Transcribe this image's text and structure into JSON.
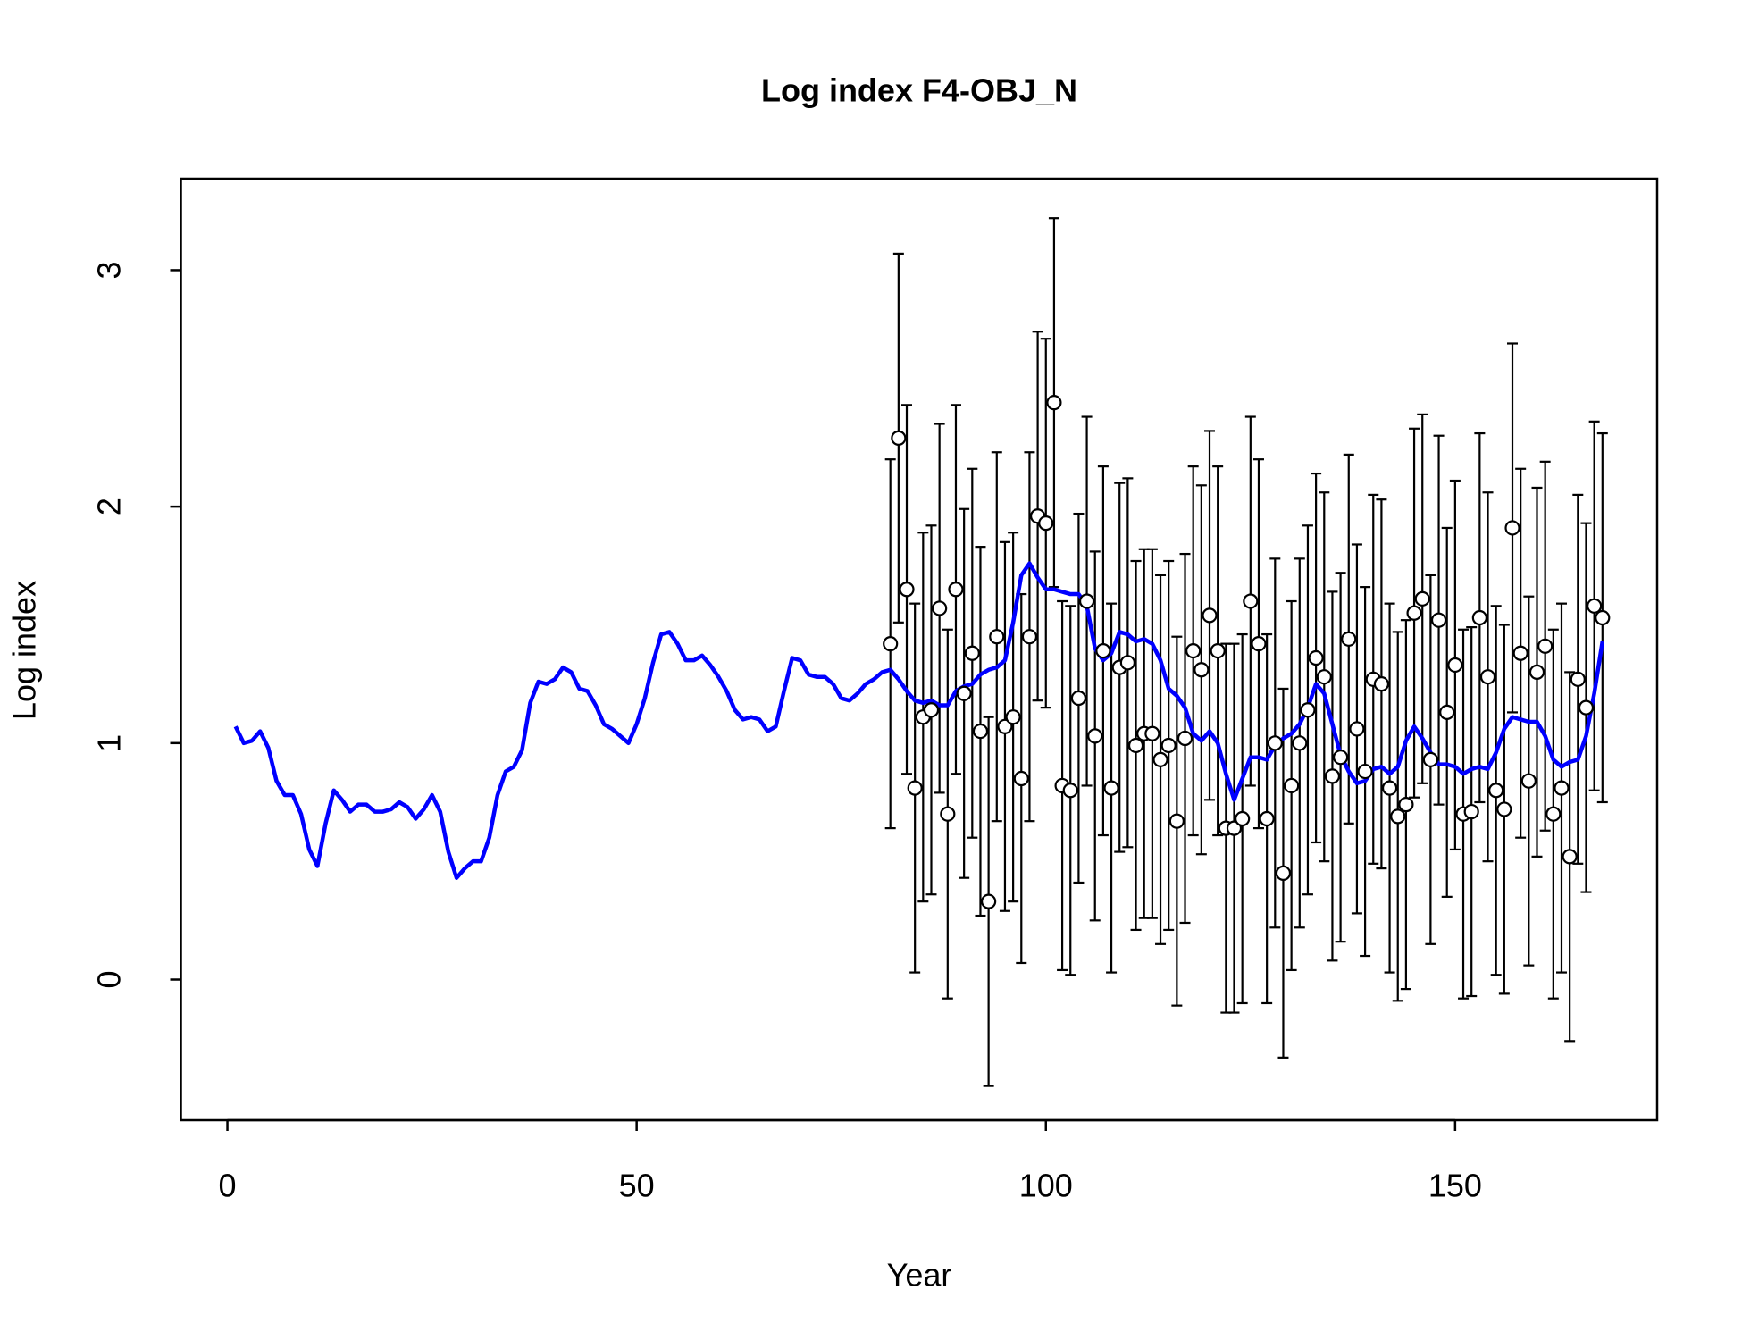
{
  "chart_data": {
    "type": "line",
    "title": "Log index F4-OBJ_N",
    "xlabel": "Year",
    "ylabel": "Log index",
    "xlim": [
      -5.68,
      174.68
    ],
    "ylim": [
      -0.595,
      3.387
    ],
    "xticks": [
      0,
      50,
      100,
      150
    ],
    "yticks": [
      0,
      1,
      2,
      3
    ],
    "line": {
      "color": "#0000ff",
      "x": [
        1,
        2,
        3,
        4,
        5,
        6,
        7,
        8,
        9,
        10,
        11,
        12,
        13,
        14,
        15,
        16,
        17,
        18,
        19,
        20,
        21,
        22,
        23,
        24,
        25,
        26,
        27,
        28,
        29,
        30,
        31,
        32,
        33,
        34,
        35,
        36,
        37,
        38,
        39,
        40,
        41,
        42,
        43,
        44,
        45,
        46,
        47,
        48,
        49,
        50,
        51,
        52,
        53,
        54,
        55,
        56,
        57,
        58,
        59,
        60,
        61,
        62,
        63,
        64,
        65,
        66,
        67,
        68,
        69,
        70,
        71,
        72,
        73,
        74,
        75,
        76,
        77,
        78,
        79,
        80,
        81,
        82,
        83,
        84,
        85,
        86,
        87,
        88,
        89,
        90,
        91,
        92,
        93,
        94,
        95,
        96,
        97,
        98,
        99,
        100,
        101,
        102,
        103,
        104,
        105,
        106,
        107,
        108,
        109,
        110,
        111,
        112,
        113,
        114,
        115,
        116,
        117,
        118,
        119,
        120,
        121,
        122,
        123,
        124,
        125,
        126,
        127,
        128,
        129,
        130,
        131,
        132,
        133,
        134,
        135,
        136,
        137,
        138,
        139,
        140,
        141,
        142,
        143,
        144,
        145,
        146,
        147,
        148,
        149,
        150,
        151,
        152,
        153,
        154,
        155,
        156,
        157,
        158,
        159,
        160,
        161,
        162,
        163,
        164,
        165,
        166,
        167,
        168
      ],
      "values": [
        1.07,
        1.0,
        1.01,
        1.05,
        0.98,
        0.84,
        0.78,
        0.78,
        0.7,
        0.55,
        0.48,
        0.66,
        0.8,
        0.76,
        0.71,
        0.74,
        0.74,
        0.71,
        0.71,
        0.72,
        0.75,
        0.73,
        0.68,
        0.72,
        0.78,
        0.71,
        0.54,
        0.43,
        0.47,
        0.5,
        0.5,
        0.6,
        0.78,
        0.88,
        0.9,
        0.97,
        1.17,
        1.26,
        1.25,
        1.27,
        1.32,
        1.3,
        1.23,
        1.22,
        1.16,
        1.08,
        1.06,
        1.03,
        1.0,
        1.08,
        1.19,
        1.34,
        1.46,
        1.47,
        1.42,
        1.35,
        1.35,
        1.37,
        1.33,
        1.28,
        1.22,
        1.14,
        1.1,
        1.11,
        1.1,
        1.05,
        1.07,
        1.22,
        1.36,
        1.35,
        1.29,
        1.28,
        1.28,
        1.25,
        1.19,
        1.18,
        1.21,
        1.25,
        1.27,
        1.3,
        1.31,
        1.27,
        1.22,
        1.18,
        1.17,
        1.18,
        1.16,
        1.16,
        1.22,
        1.24,
        1.25,
        1.29,
        1.31,
        1.32,
        1.35,
        1.51,
        1.71,
        1.76,
        1.7,
        1.65,
        1.65,
        1.64,
        1.63,
        1.63,
        1.58,
        1.4,
        1.35,
        1.38,
        1.47,
        1.46,
        1.43,
        1.44,
        1.42,
        1.35,
        1.23,
        1.2,
        1.15,
        1.04,
        1.01,
        1.05,
        1.0,
        0.87,
        0.76,
        0.85,
        0.94,
        0.94,
        0.93,
        0.99,
        1.02,
        1.04,
        1.08,
        1.15,
        1.25,
        1.21,
        1.08,
        0.95,
        0.88,
        0.83,
        0.84,
        0.89,
        0.9,
        0.87,
        0.9,
        1.01,
        1.07,
        1.02,
        0.96,
        0.91,
        0.91,
        0.9,
        0.87,
        0.89,
        0.9,
        0.89,
        0.96,
        1.06,
        1.11,
        1.1,
        1.09,
        1.09,
        1.03,
        0.93,
        0.9,
        0.92,
        0.93,
        1.03,
        1.21,
        1.43
      ]
    },
    "observed": {
      "color": "#000000",
      "fill": "#ffffff",
      "error": 0.78,
      "x": [
        81,
        82,
        83,
        84,
        85,
        86,
        87,
        88,
        89,
        90,
        91,
        92,
        93,
        94,
        95,
        96,
        97,
        98,
        99,
        100,
        101,
        102,
        103,
        104,
        105,
        106,
        107,
        108,
        109,
        110,
        111,
        112,
        113,
        114,
        115,
        116,
        117,
        118,
        119,
        120,
        121,
        122,
        123,
        124,
        125,
        126,
        127,
        128,
        129,
        130,
        131,
        132,
        133,
        134,
        135,
        136,
        137,
        138,
        139,
        140,
        141,
        142,
        143,
        144,
        145,
        146,
        147,
        148,
        149,
        150,
        151,
        152,
        153,
        154,
        155,
        156,
        157,
        158,
        159,
        160,
        161,
        162,
        163,
        164,
        165,
        166,
        167,
        168
      ],
      "values": [
        1.42,
        2.29,
        1.65,
        0.81,
        1.11,
        1.14,
        1.57,
        0.7,
        1.65,
        1.21,
        1.38,
        1.05,
        0.33,
        1.45,
        1.07,
        1.11,
        0.85,
        1.45,
        1.96,
        1.93,
        2.44,
        0.82,
        0.8,
        1.19,
        1.6,
        1.03,
        1.39,
        0.81,
        1.32,
        1.34,
        0.99,
        1.04,
        1.04,
        0.93,
        0.99,
        0.67,
        1.02,
        1.39,
        1.31,
        1.54,
        1.39,
        0.64,
        0.64,
        0.68,
        1.6,
        1.42,
        0.68,
        1.0,
        0.45,
        0.82,
        1.0,
        1.14,
        1.36,
        1.28,
        0.86,
        0.94,
        1.44,
        1.06,
        0.88,
        1.27,
        1.25,
        0.81,
        0.69,
        0.74,
        1.55,
        1.61,
        0.93,
        1.52,
        1.13,
        1.33,
        0.7,
        0.71,
        1.53,
        1.28,
        0.8,
        0.72,
        1.91,
        1.38,
        0.84,
        1.3,
        1.41,
        0.7,
        0.81,
        0.52,
        1.27,
        1.15,
        1.58,
        1.53
      ]
    }
  }
}
